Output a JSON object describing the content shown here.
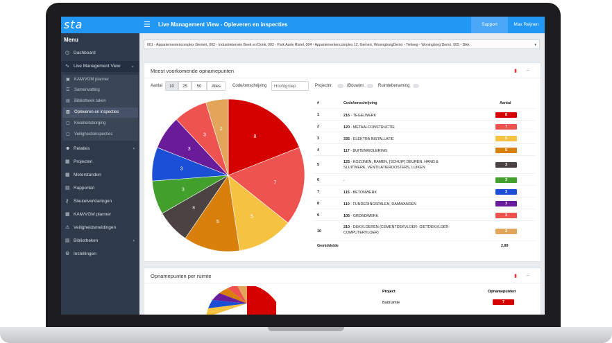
{
  "app": {
    "logo_text": "sta",
    "menu_title": "Menu",
    "page_title": "Live Management View - Opleveren en inspecties",
    "support_label": "Support",
    "user_name": "Max Reijnen"
  },
  "sidebar": {
    "items": [
      {
        "label": "Dashboard",
        "icon": "dashboard-icon"
      },
      {
        "label": "Live Management View",
        "icon": "chart-icon"
      },
      {
        "label": "Relaties",
        "icon": "users-icon"
      },
      {
        "label": "Projecten",
        "icon": "folder-icon"
      },
      {
        "label": "Meterstanden",
        "icon": "meter-icon"
      },
      {
        "label": "Rapporten",
        "icon": "report-icon"
      },
      {
        "label": "Sleutelverklaringen",
        "icon": "key-icon"
      },
      {
        "label": "KAM/VGM planner",
        "icon": "calendar-icon"
      },
      {
        "label": "Veiligheidsmeldingen",
        "icon": "alert-icon"
      },
      {
        "label": "Bibliotheken",
        "icon": "book-icon"
      },
      {
        "label": "Instellingen",
        "icon": "gear-icon"
      }
    ],
    "subitems": [
      {
        "label": "KAM/VGM planner"
      },
      {
        "label": "Samenvatting"
      },
      {
        "label": "Bibliotheek taken"
      },
      {
        "label": "Opleveren en inspecties"
      },
      {
        "label": "Kwaliteitsborging"
      },
      {
        "label": "Veiligheidsinspecties"
      }
    ]
  },
  "filter": {
    "value": "001 - Appartementencomplex Gemert, 002 - Industrieterrein Beek en Donk, 003 - Park Aarle Rixtel, 004 - Appartementencomplex 12, Gemert, WoningborgDemo - Tielweg - Woningborg Demo, 005 - Dikk"
  },
  "panel1": {
    "title": "Meest voorkomende opnamepunten",
    "controls": {
      "aantal_label": "Aantal",
      "aantal_options": [
        "10",
        "25",
        "50",
        "Alles"
      ],
      "code_label": "Code/omschrijving",
      "code_select": "Hoofdgroep",
      "projectnr_label": "Projectnr.",
      "bouwnr_label": "(Bouw)nr.",
      "ruimte_label": "Ruimtebenaming"
    },
    "table": {
      "headers": [
        "#",
        "Code/omschrijving",
        "Aantal"
      ],
      "rows": [
        {
          "n": "1",
          "code": "216",
          "desc": "TEGELWERK",
          "count": "8",
          "color": "#d50000"
        },
        {
          "n": "2",
          "code": "120",
          "desc": "METAALCONSTRUCTIE",
          "count": "7",
          "color": "#ef5350"
        },
        {
          "n": "3",
          "code": "335",
          "desc": "ELEKTRA INSTALLATIE",
          "count": "5",
          "color": "#f5c242"
        },
        {
          "n": "4",
          "code": "117",
          "desc": "BUITENRIOLERING",
          "count": "5",
          "color": "#d9800c"
        },
        {
          "n": "5",
          "code": "125",
          "desc": "KOZIJNEN, RAMEN, [SCHUIF] DEUREN, HANG & SLUITWERK, VENTILATIEROOSTERS, LUIKEN",
          "count": "3",
          "color": "#4b4242"
        },
        {
          "n": "6",
          "code": "",
          "desc": "-",
          "count": "3",
          "color": "#43a02d"
        },
        {
          "n": "7",
          "code": "115",
          "desc": "BETONWERK",
          "count": "3",
          "color": "#1b4fd6"
        },
        {
          "n": "8",
          "code": "110",
          "desc": "FUNDERINGSPALEN, DAMWANDEN",
          "count": "3",
          "color": "#6a1b9a"
        },
        {
          "n": "9",
          "code": "105",
          "desc": "GRONDWERK",
          "count": "3",
          "color": "#ef5350"
        },
        {
          "n": "10",
          "code": "210",
          "desc": "DEKVLOEREN (CEMENTDEKVLOER- GIETDEKVLOER-COMPUTERVLOER)",
          "count": "2",
          "color": "#e3a55a"
        }
      ],
      "avg_label": "Gemiddelde",
      "avg_value": "2,89"
    }
  },
  "panel2": {
    "title": "Opnamepunten per ruimte",
    "headers": [
      "Project",
      "Opnamepunten"
    ],
    "rows": [
      {
        "project": "Badruimte",
        "count": "7",
        "color": "#d50000"
      }
    ]
  },
  "chart_data": [
    {
      "type": "pie",
      "title": "",
      "categories": [
        "216 - TEGELWERK",
        "120 - METAALCONSTRUCTIE",
        "335 - ELEKTRA INSTALLATIE",
        "117 - BUITENRIOLERING",
        "125 - KOZIJNEN",
        "-",
        "115 - BETONWERK",
        "110 - FUNDERINGSPALEN, DAMWANDEN",
        "105 - GRONDWERK",
        "210 - DEKVLOEREN"
      ],
      "values": [
        8,
        7,
        5,
        5,
        3,
        3,
        3,
        3,
        3,
        2
      ],
      "colors": [
        "#d50000",
        "#ef5350",
        "#f5c242",
        "#d9800c",
        "#4b4242",
        "#43a02d",
        "#1b4fd6",
        "#6a1b9a",
        "#ef5350",
        "#e3a55a"
      ]
    }
  ]
}
